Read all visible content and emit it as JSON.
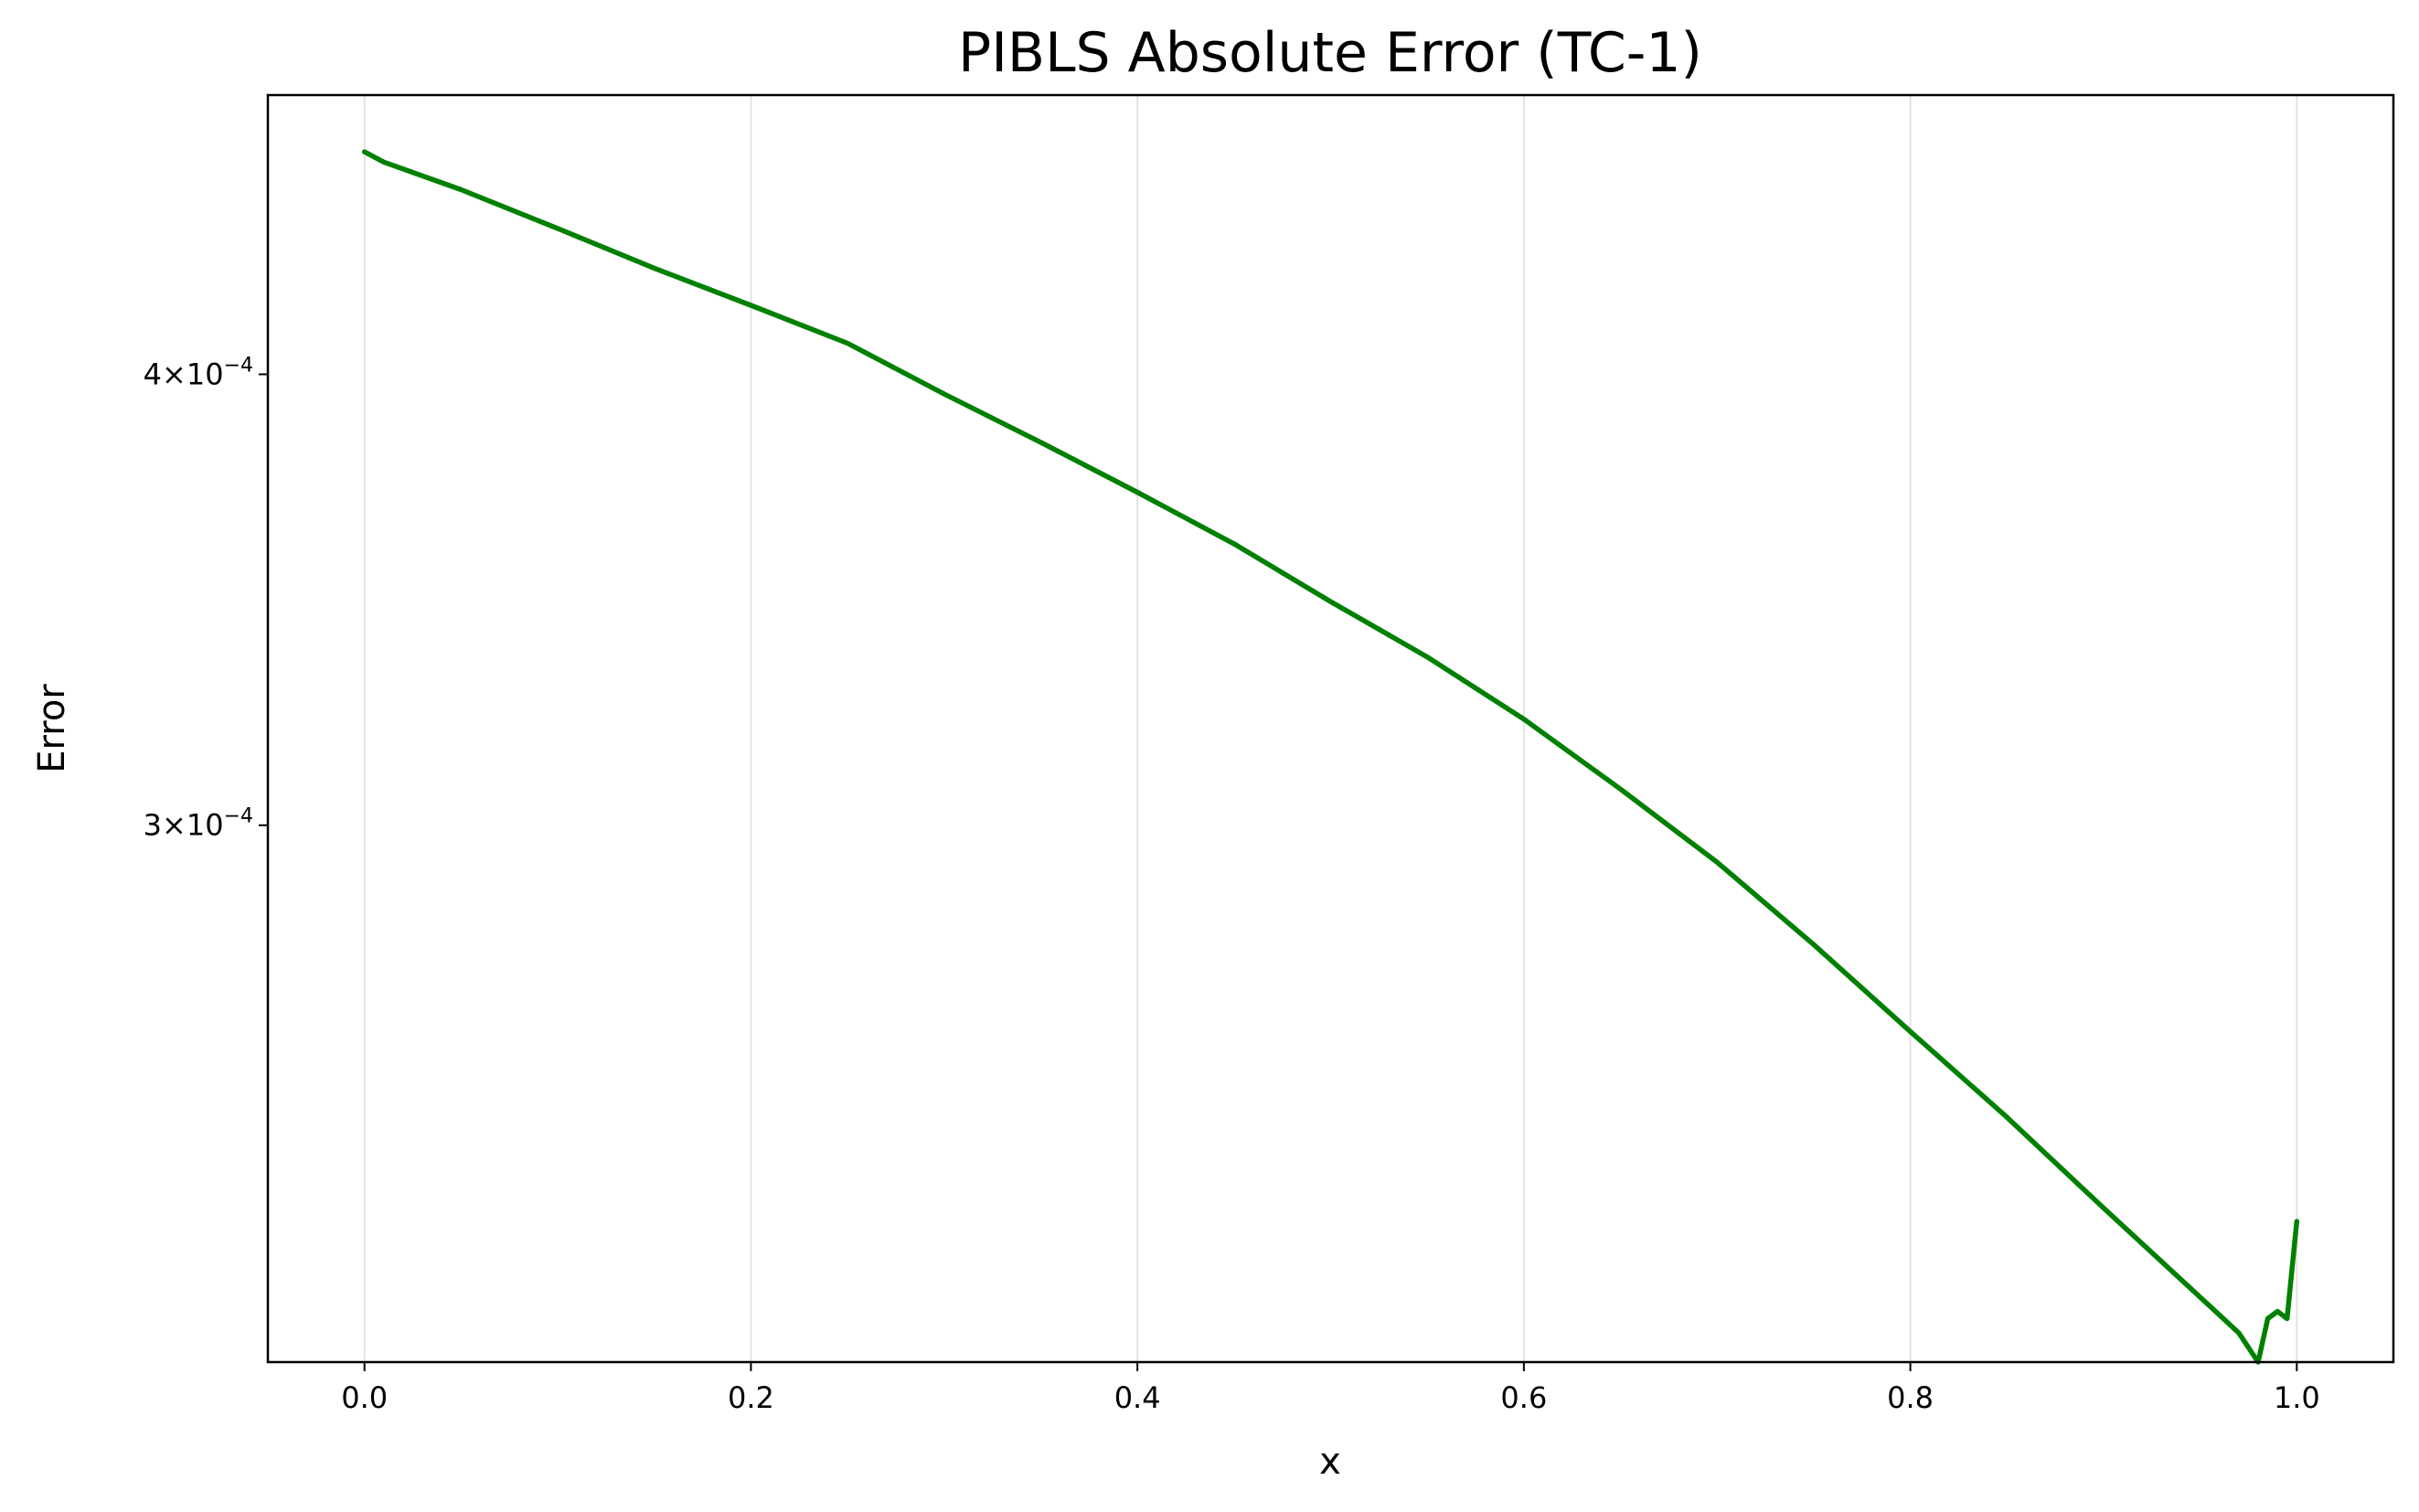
{
  "chart_data": {
    "type": "line",
    "title": "PIBLS Absolute Error (TC-1)",
    "xlabel": "x",
    "ylabel": "Error",
    "yscale": "log",
    "xlim": [
      -0.05,
      1.05
    ],
    "ylim": [
      0.000213,
      0.000478
    ],
    "grid": "vertical",
    "x_ticks": [
      {
        "value": 0.0,
        "label": "0.0"
      },
      {
        "value": 0.2,
        "label": "0.2"
      },
      {
        "value": 0.4,
        "label": "0.4"
      },
      {
        "value": 0.6,
        "label": "0.6"
      },
      {
        "value": 0.8,
        "label": "0.8"
      },
      {
        "value": 1.0,
        "label": "1.0"
      }
    ],
    "y_ticks": [
      {
        "value": 0.0004,
        "base": "4",
        "exp": "−4"
      },
      {
        "value": 0.0003,
        "base": "3",
        "exp": "−4"
      }
    ],
    "series": [
      {
        "color": "#008000",
        "x": [
          0.0,
          0.01,
          0.05,
          0.1,
          0.15,
          0.2,
          0.25,
          0.3,
          0.35,
          0.4,
          0.45,
          0.5,
          0.55,
          0.6,
          0.65,
          0.7,
          0.75,
          0.8,
          0.85,
          0.9,
          0.95,
          0.97,
          0.98,
          0.985,
          0.99,
          0.995,
          1.0
        ],
        "y": [
          0.000461,
          0.000458,
          0.00045,
          0.000439,
          0.000428,
          0.000418,
          0.000408,
          0.000395,
          0.000383,
          0.000371,
          0.000359,
          0.000346,
          0.000334,
          0.000321,
          0.000307,
          0.000293,
          0.000278,
          0.000263,
          0.000249,
          0.000235,
          0.000222,
          0.000217,
          0.000213,
          0.000219,
          0.00022,
          0.000219,
          0.000233
        ]
      }
    ]
  }
}
